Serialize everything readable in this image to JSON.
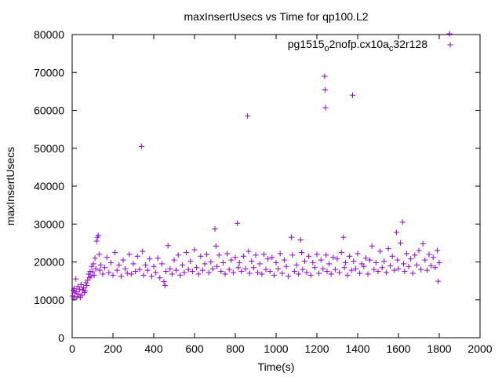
{
  "chart_data": {
    "type": "scatter",
    "title": "maxInsertUsecs vs Time for qp100.L2",
    "xlabel": "Time(s)",
    "ylabel": "maxInsertUsecs",
    "xlim": [
      0,
      2000
    ],
    "ylim": [
      0,
      80000
    ],
    "x_ticks": [
      0,
      200,
      400,
      600,
      800,
      1000,
      1200,
      1400,
      1600,
      1800,
      2000
    ],
    "y_ticks": [
      0,
      10000,
      20000,
      30000,
      40000,
      50000,
      60000,
      70000,
      80000
    ],
    "grid": false,
    "legend_position": "top-right",
    "marker": "plus",
    "series": [
      {
        "name": "pg1515_o2nofp.cx10a_c32r128",
        "legend_parts": [
          "pg1515",
          "o",
          "2nofp.cx10a",
          "c",
          "32r128"
        ],
        "color": "#9400d3",
        "points": [
          [
            2,
            11000
          ],
          [
            5,
            12500
          ],
          [
            8,
            10500
          ],
          [
            10,
            13000
          ],
          [
            14,
            11800
          ],
          [
            18,
            15500
          ],
          [
            20,
            12200
          ],
          [
            24,
            10800
          ],
          [
            28,
            13500
          ],
          [
            32,
            11500
          ],
          [
            36,
            12800
          ],
          [
            40,
            10600
          ],
          [
            44,
            14000
          ],
          [
            48,
            11200
          ],
          [
            52,
            12600
          ],
          [
            56,
            13200
          ],
          [
            60,
            11900
          ],
          [
            64,
            12400
          ],
          [
            68,
            14500
          ],
          [
            72,
            13800
          ],
          [
            76,
            15200
          ],
          [
            80,
            16800
          ],
          [
            84,
            15900
          ],
          [
            88,
            17500
          ],
          [
            92,
            16200
          ],
          [
            96,
            18800
          ],
          [
            100,
            17400
          ],
          [
            104,
            19500
          ],
          [
            108,
            16500
          ],
          [
            112,
            21000
          ],
          [
            116,
            18200
          ],
          [
            120,
            25500
          ],
          [
            124,
            26500
          ],
          [
            128,
            27000
          ],
          [
            132,
            22000
          ],
          [
            136,
            17800
          ],
          [
            140,
            19200
          ],
          [
            150,
            16800
          ],
          [
            160,
            18500
          ],
          [
            170,
            21200
          ],
          [
            180,
            17200
          ],
          [
            190,
            19800
          ],
          [
            200,
            16500
          ],
          [
            210,
            22500
          ],
          [
            220,
            17800
          ],
          [
            230,
            19200
          ],
          [
            240,
            16200
          ],
          [
            250,
            20500
          ],
          [
            260,
            18200
          ],
          [
            270,
            17000
          ],
          [
            280,
            22000
          ],
          [
            290,
            16800
          ],
          [
            300,
            19500
          ],
          [
            310,
            17500
          ],
          [
            320,
            21500
          ],
          [
            330,
            18000
          ],
          [
            340,
            50500
          ],
          [
            345,
            22800
          ],
          [
            350,
            16500
          ],
          [
            360,
            19200
          ],
          [
            370,
            17800
          ],
          [
            380,
            20800
          ],
          [
            390,
            16200
          ],
          [
            400,
            18800
          ],
          [
            410,
            17200
          ],
          [
            420,
            21000
          ],
          [
            430,
            15800
          ],
          [
            440,
            19500
          ],
          [
            450,
            14800
          ],
          [
            455,
            13800
          ],
          [
            460,
            17500
          ],
          [
            470,
            24300
          ],
          [
            480,
            18200
          ],
          [
            490,
            16800
          ],
          [
            500,
            20500
          ],
          [
            510,
            17800
          ],
          [
            520,
            21800
          ],
          [
            530,
            16500
          ],
          [
            540,
            19200
          ],
          [
            550,
            17200
          ],
          [
            560,
            22500
          ],
          [
            570,
            18000
          ],
          [
            580,
            20200
          ],
          [
            590,
            17500
          ],
          [
            600,
            23200
          ],
          [
            610,
            18500
          ],
          [
            620,
            16800
          ],
          [
            630,
            21500
          ],
          [
            640,
            17800
          ],
          [
            650,
            19500
          ],
          [
            660,
            22000
          ],
          [
            670,
            17200
          ],
          [
            680,
            20000
          ],
          [
            690,
            18200
          ],
          [
            700,
            28700
          ],
          [
            705,
            24200
          ],
          [
            710,
            18800
          ],
          [
            720,
            21800
          ],
          [
            730,
            17500
          ],
          [
            740,
            19800
          ],
          [
            750,
            16800
          ],
          [
            760,
            22200
          ],
          [
            770,
            18000
          ],
          [
            780,
            20500
          ],
          [
            790,
            17200
          ],
          [
            800,
            21200
          ],
          [
            810,
            30200
          ],
          [
            815,
            18500
          ],
          [
            820,
            19800
          ],
          [
            830,
            17500
          ],
          [
            840,
            21500
          ],
          [
            850,
            18200
          ],
          [
            860,
            58500
          ],
          [
            865,
            22800
          ],
          [
            870,
            17000
          ],
          [
            880,
            20200
          ],
          [
            890,
            18500
          ],
          [
            900,
            21800
          ],
          [
            910,
            17200
          ],
          [
            920,
            19500
          ],
          [
            930,
            16800
          ],
          [
            940,
            22000
          ],
          [
            950,
            18000
          ],
          [
            960,
            20800
          ],
          [
            970,
            17500
          ],
          [
            980,
            21200
          ],
          [
            990,
            16500
          ],
          [
            1000,
            19800
          ],
          [
            1010,
            18200
          ],
          [
            1020,
            22200
          ],
          [
            1030,
            17000
          ],
          [
            1040,
            20500
          ],
          [
            1050,
            18800
          ],
          [
            1060,
            16200
          ],
          [
            1075,
            26500
          ],
          [
            1080,
            21800
          ],
          [
            1090,
            17500
          ],
          [
            1100,
            19200
          ],
          [
            1110,
            16800
          ],
          [
            1120,
            25800
          ],
          [
            1125,
            22500
          ],
          [
            1130,
            18000
          ],
          [
            1140,
            20200
          ],
          [
            1150,
            17200
          ],
          [
            1160,
            21500
          ],
          [
            1170,
            16500
          ],
          [
            1180,
            19800
          ],
          [
            1190,
            18500
          ],
          [
            1200,
            22000
          ],
          [
            1210,
            17000
          ],
          [
            1220,
            20500
          ],
          [
            1230,
            18200
          ],
          [
            1238,
            69000
          ],
          [
            1240,
            65400
          ],
          [
            1242,
            60700
          ],
          [
            1245,
            21800
          ],
          [
            1250,
            17500
          ],
          [
            1260,
            19500
          ],
          [
            1270,
            16800
          ],
          [
            1280,
            21200
          ],
          [
            1290,
            18000
          ],
          [
            1300,
            20800
          ],
          [
            1310,
            17200
          ],
          [
            1320,
            22500
          ],
          [
            1330,
            26500
          ],
          [
            1335,
            18500
          ],
          [
            1340,
            19800
          ],
          [
            1350,
            16500
          ],
          [
            1360,
            21500
          ],
          [
            1370,
            17800
          ],
          [
            1375,
            64000
          ],
          [
            1380,
            20200
          ],
          [
            1390,
            18200
          ],
          [
            1400,
            22200
          ],
          [
            1410,
            17000
          ],
          [
            1420,
            19500
          ],
          [
            1430,
            18800
          ],
          [
            1440,
            21000
          ],
          [
            1450,
            16800
          ],
          [
            1460,
            20500
          ],
          [
            1470,
            24200
          ],
          [
            1480,
            18000
          ],
          [
            1490,
            19800
          ],
          [
            1500,
            17500
          ],
          [
            1510,
            22800
          ],
          [
            1520,
            18500
          ],
          [
            1530,
            20200
          ],
          [
            1540,
            17200
          ],
          [
            1550,
            23500
          ],
          [
            1560,
            19000
          ],
          [
            1570,
            21500
          ],
          [
            1580,
            17800
          ],
          [
            1590,
            27800
          ],
          [
            1595,
            20500
          ],
          [
            1600,
            18200
          ],
          [
            1610,
            25000
          ],
          [
            1620,
            30500
          ],
          [
            1625,
            19500
          ],
          [
            1630,
            17500
          ],
          [
            1640,
            22200
          ],
          [
            1650,
            18800
          ],
          [
            1660,
            20800
          ],
          [
            1670,
            17000
          ],
          [
            1680,
            21800
          ],
          [
            1690,
            19200
          ],
          [
            1700,
            23000
          ],
          [
            1710,
            18000
          ],
          [
            1720,
            24800
          ],
          [
            1730,
            20500
          ],
          [
            1740,
            17800
          ],
          [
            1750,
            22000
          ],
          [
            1760,
            19000
          ],
          [
            1770,
            21200
          ],
          [
            1780,
            18500
          ],
          [
            1790,
            23000
          ],
          [
            1795,
            14900
          ],
          [
            1800,
            19800
          ],
          [
            1850,
            80200
          ]
        ]
      }
    ]
  }
}
